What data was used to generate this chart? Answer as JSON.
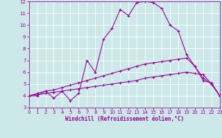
{
  "xlabel": "Windchill (Refroidissement éolien,°C)",
  "bg_color": "#cce8e8",
  "line_color": "#990099",
  "grid_color": "#ffffff",
  "xmin": 0,
  "xmax": 23,
  "ymin": 3,
  "ymax": 12,
  "line1_x": [
    0,
    1,
    2,
    3,
    4,
    5,
    6,
    7,
    8,
    9,
    10,
    11,
    12,
    13,
    14,
    15,
    16,
    17,
    18,
    19,
    20,
    21,
    22,
    23
  ],
  "line1_y": [
    4.0,
    4.0,
    4.4,
    3.8,
    4.4,
    3.6,
    4.2,
    7.0,
    6.0,
    8.8,
    9.7,
    11.3,
    10.8,
    11.9,
    12.0,
    11.9,
    11.4,
    10.0,
    9.5,
    7.5,
    6.5,
    5.3,
    5.1,
    4.0
  ],
  "line2_x": [
    0,
    1,
    2,
    3,
    4,
    5,
    6,
    7,
    8,
    9,
    10,
    11,
    12,
    13,
    14,
    15,
    16,
    17,
    18,
    19,
    20,
    21,
    22,
    23
  ],
  "line2_y": [
    4.0,
    4.2,
    4.4,
    4.5,
    4.7,
    4.9,
    5.1,
    5.3,
    5.5,
    5.7,
    5.9,
    6.1,
    6.3,
    6.5,
    6.7,
    6.8,
    6.9,
    7.0,
    7.1,
    7.2,
    6.5,
    5.5,
    5.0,
    4.0
  ],
  "line3_x": [
    0,
    1,
    2,
    3,
    4,
    5,
    6,
    7,
    8,
    9,
    10,
    11,
    12,
    13,
    14,
    15,
    16,
    17,
    18,
    19,
    20,
    21,
    22,
    23
  ],
  "line3_y": [
    4.0,
    4.1,
    4.2,
    4.3,
    4.4,
    4.5,
    4.6,
    4.7,
    4.8,
    4.9,
    5.0,
    5.1,
    5.2,
    5.3,
    5.5,
    5.6,
    5.7,
    5.8,
    5.9,
    6.0,
    5.9,
    5.8,
    5.0,
    4.0
  ]
}
